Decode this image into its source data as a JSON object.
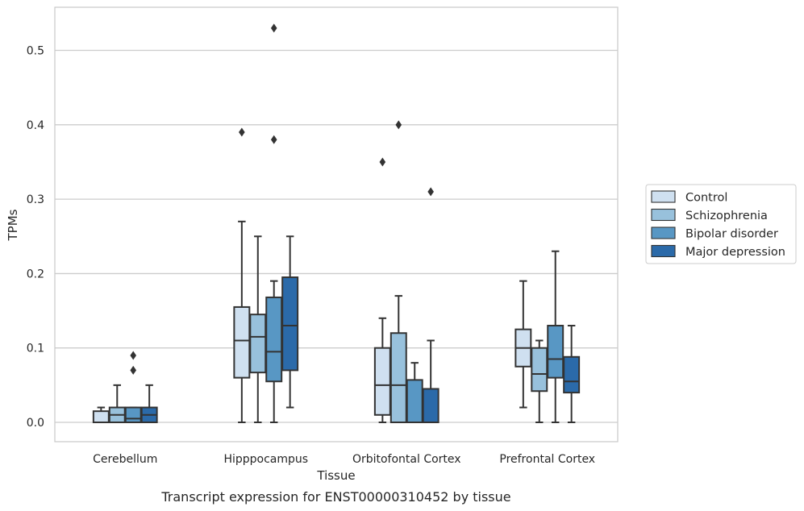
{
  "caption": "Transcript expression for ENST00000310452 by tissue",
  "chart_data": {
    "type": "box",
    "xlabel": "Tissue",
    "ylabel": "TPMs",
    "ylim": [
      -0.026,
      0.558
    ],
    "yticks": [
      0.0,
      0.1,
      0.2,
      0.3,
      0.4,
      0.5
    ],
    "ytick_labels": [
      "0.0",
      "0.1",
      "0.2",
      "0.3",
      "0.4",
      "0.5"
    ],
    "grid": true,
    "legend_position": "right",
    "categories": [
      "Cerebellum",
      "Hipppocampus",
      "Orbitofontal Cortex",
      "Prefrontal Cortex"
    ],
    "series": [
      {
        "name": "Control",
        "color": "#cfe0f0",
        "boxes": [
          {
            "whislo": 0.0,
            "q1": 0.0,
            "med": 0.0,
            "q3": 0.015,
            "whishi": 0.02,
            "fliers": []
          },
          {
            "whislo": 0.0,
            "q1": 0.06,
            "med": 0.11,
            "q3": 0.155,
            "whishi": 0.27,
            "fliers": [
              0.39
            ]
          },
          {
            "whislo": 0.0,
            "q1": 0.01,
            "med": 0.05,
            "q3": 0.1,
            "whishi": 0.14,
            "fliers": [
              0.35
            ]
          },
          {
            "whislo": 0.02,
            "q1": 0.075,
            "med": 0.1,
            "q3": 0.125,
            "whishi": 0.19,
            "fliers": []
          }
        ]
      },
      {
        "name": "Schizophrenia",
        "color": "#98c1dc",
        "boxes": [
          {
            "whislo": 0.0,
            "q1": 0.0,
            "med": 0.01,
            "q3": 0.02,
            "whishi": 0.05,
            "fliers": []
          },
          {
            "whislo": 0.0,
            "q1": 0.067,
            "med": 0.115,
            "q3": 0.145,
            "whishi": 0.25,
            "fliers": []
          },
          {
            "whislo": 0.0,
            "q1": 0.0,
            "med": 0.05,
            "q3": 0.12,
            "whishi": 0.17,
            "fliers": [
              0.4
            ]
          },
          {
            "whislo": 0.0,
            "q1": 0.042,
            "med": 0.065,
            "q3": 0.1,
            "whishi": 0.11,
            "fliers": []
          }
        ]
      },
      {
        "name": "Bipolar disorder",
        "color": "#5897c4",
        "boxes": [
          {
            "whislo": 0.0,
            "q1": 0.0,
            "med": 0.005,
            "q3": 0.02,
            "whishi": 0.02,
            "fliers": [
              0.07,
              0.09
            ]
          },
          {
            "whislo": 0.0,
            "q1": 0.055,
            "med": 0.095,
            "q3": 0.168,
            "whishi": 0.19,
            "fliers": [
              0.38,
              0.53
            ]
          },
          {
            "whislo": 0.0,
            "q1": 0.0,
            "med": 0.0,
            "q3": 0.057,
            "whishi": 0.08,
            "fliers": []
          },
          {
            "whislo": 0.0,
            "q1": 0.06,
            "med": 0.085,
            "q3": 0.13,
            "whishi": 0.23,
            "fliers": []
          }
        ]
      },
      {
        "name": "Major depression",
        "color": "#2b6aa9",
        "boxes": [
          {
            "whislo": 0.0,
            "q1": 0.0,
            "med": 0.01,
            "q3": 0.02,
            "whishi": 0.05,
            "fliers": []
          },
          {
            "whislo": 0.02,
            "q1": 0.07,
            "med": 0.13,
            "q3": 0.195,
            "whishi": 0.25,
            "fliers": []
          },
          {
            "whislo": 0.0,
            "q1": 0.0,
            "med": 0.0,
            "q3": 0.045,
            "whishi": 0.11,
            "fliers": [
              0.31
            ]
          },
          {
            "whislo": 0.0,
            "q1": 0.04,
            "med": 0.055,
            "q3": 0.088,
            "whishi": 0.13,
            "fliers": []
          }
        ]
      }
    ]
  },
  "colors": {
    "grid": "#cccccc",
    "frame": "#cccccc",
    "line": "#333333",
    "text": "#262626"
  }
}
